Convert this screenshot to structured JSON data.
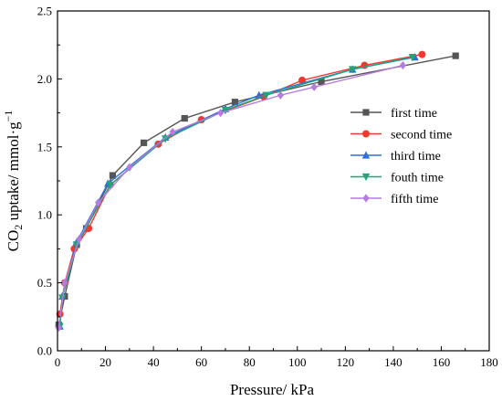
{
  "chart_data": {
    "type": "line",
    "xlabel": "Pressure/ kPa",
    "ylabel": {
      "prefix": "CO",
      "sub": "2",
      "mid": " uptake/ mmol·g",
      "sup": "−1"
    },
    "xlim": [
      0,
      180
    ],
    "ylim": [
      0.0,
      2.5
    ],
    "x_ticks": [
      "0",
      "20",
      "40",
      "60",
      "80",
      "100",
      "120",
      "140",
      "160",
      "180"
    ],
    "y_ticks": [
      "0.0",
      "0.5",
      "1.0",
      "1.5",
      "2.0",
      "2.5"
    ],
    "grid": false,
    "legend_position": "right",
    "series": [
      {
        "name": "first time",
        "color": "#555555",
        "marker": "square",
        "points": [
          [
            0.5,
            0.19
          ],
          [
            3,
            0.4
          ],
          [
            8,
            0.78
          ],
          [
            12,
            0.9
          ],
          [
            23,
            1.29
          ],
          [
            36,
            1.53
          ],
          [
            53,
            1.71
          ],
          [
            74,
            1.83
          ],
          [
            110,
            1.98
          ],
          [
            166,
            2.17
          ]
        ]
      },
      {
        "name": "second time",
        "color": "#ee3a2f",
        "marker": "circle",
        "points": [
          [
            1,
            0.27
          ],
          [
            3,
            0.5
          ],
          [
            7,
            0.75
          ],
          [
            13,
            0.9
          ],
          [
            22,
            1.22
          ],
          [
            42,
            1.52
          ],
          [
            60,
            1.7
          ],
          [
            86,
            1.87
          ],
          [
            102,
            1.99
          ],
          [
            128,
            2.1
          ],
          [
            152,
            2.18
          ]
        ]
      },
      {
        "name": "third time",
        "color": "#2f6fd6",
        "marker": "triangle-up",
        "points": [
          [
            1,
            0.18
          ],
          [
            2,
            0.4
          ],
          [
            8,
            0.8
          ],
          [
            21,
            1.23
          ],
          [
            45,
            1.57
          ],
          [
            70,
            1.78
          ],
          [
            84,
            1.88
          ],
          [
            123,
            2.07
          ],
          [
            149,
            2.16
          ]
        ]
      },
      {
        "name": "fouth time",
        "color": "#22a47a",
        "marker": "triangle-down",
        "points": [
          [
            1,
            0.18
          ],
          [
            2,
            0.39
          ],
          [
            8,
            0.78
          ],
          [
            22,
            1.22
          ],
          [
            45,
            1.56
          ],
          [
            70,
            1.77
          ],
          [
            87,
            1.88
          ],
          [
            123,
            2.07
          ],
          [
            148,
            2.16
          ]
        ]
      },
      {
        "name": "fifth time",
        "color": "#b57be0",
        "marker": "diamond",
        "points": [
          [
            0.5,
            0.17
          ],
          [
            3,
            0.5
          ],
          [
            9,
            0.82
          ],
          [
            17,
            1.09
          ],
          [
            30,
            1.35
          ],
          [
            48,
            1.61
          ],
          [
            68,
            1.75
          ],
          [
            93,
            1.88
          ],
          [
            107,
            1.94
          ],
          [
            144,
            2.1
          ]
        ]
      }
    ]
  }
}
